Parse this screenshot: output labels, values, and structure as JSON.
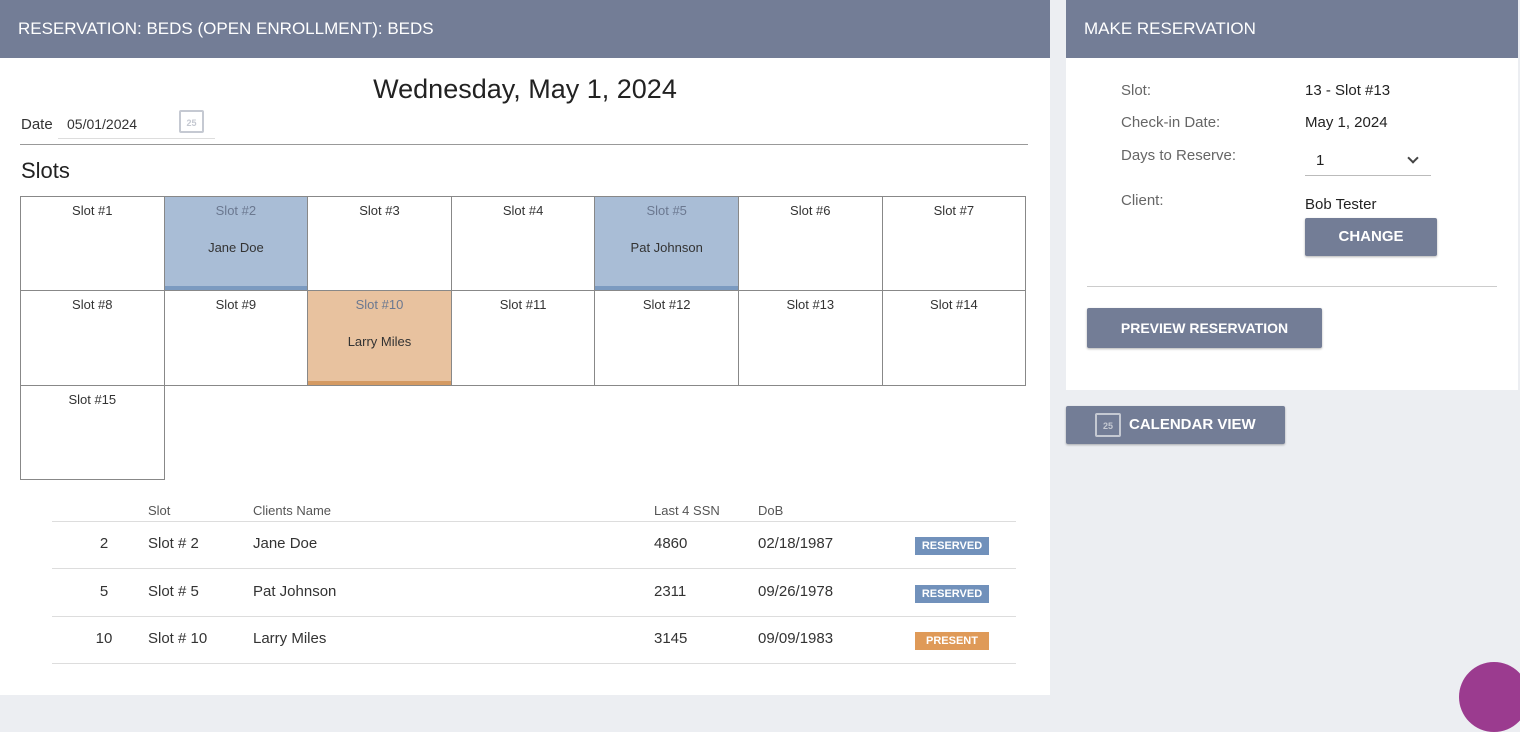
{
  "header": {
    "title": "RESERVATION: BEDS (OPEN ENROLLMENT): BEDS"
  },
  "date_heading": "Wednesday, May 1, 2024",
  "date_field": {
    "label": "Date",
    "value": "05/01/2024",
    "icon_label": "25"
  },
  "slots_title": "Slots",
  "slots": [
    {
      "label": "Slot #1"
    },
    {
      "label": "Slot #2",
      "client": "Jane Doe",
      "color": "#a9bdd6",
      "bar_color": "#7b9ac0"
    },
    {
      "label": "Slot #3"
    },
    {
      "label": "Slot #4"
    },
    {
      "label": "Slot #5",
      "client": "Pat Johnson",
      "color": "#a9bdd6",
      "bar_color": "#7b9ac0"
    },
    {
      "label": "Slot #6"
    },
    {
      "label": "Slot #7"
    },
    {
      "label": "Slot #8"
    },
    {
      "label": "Slot #9"
    },
    {
      "label": "Slot #10",
      "client": "Larry Miles",
      "color": "#e8c29f",
      "bar_color": "#d49a63"
    },
    {
      "label": "Slot #11"
    },
    {
      "label": "Slot #12"
    },
    {
      "label": "Slot #13"
    },
    {
      "label": "Slot #14"
    },
    {
      "label": "Slot #15"
    }
  ],
  "table": {
    "columns": [
      "Slot",
      "Clients Name",
      "Last 4 SSN",
      "DoB"
    ],
    "rows": [
      [
        "2",
        "Slot # 2",
        "Jane Doe",
        "4860",
        "02/18/1987",
        {
          "label": "RESERVED",
          "color": "#7191bb"
        }
      ],
      [
        "5",
        "Slot # 5",
        "Pat Johnson",
        "2311",
        "09/26/1978",
        {
          "label": "RESERVED",
          "color": "#7191bb"
        }
      ],
      [
        "10",
        "Slot # 10",
        "Larry Miles",
        "3145",
        "09/09/1983",
        {
          "label": "PRESENT",
          "color": "#df9a58"
        }
      ]
    ]
  },
  "reservation": {
    "title": "MAKE RESERVATION",
    "fields": [
      {
        "label": "Slot:",
        "value": "13 - Slot #13"
      },
      {
        "label": "Check-in Date:",
        "value": "May 1, 2024"
      },
      {
        "label": "Days to Reserve:",
        "value": "1"
      },
      {
        "label": "Client:",
        "value": "Bob Tester"
      }
    ],
    "change_button": "CHANGE",
    "preview_button": "PREVIEW RESERVATION"
  },
  "calendar_button": {
    "label": "CALENDAR VIEW",
    "icon_label": "25"
  }
}
